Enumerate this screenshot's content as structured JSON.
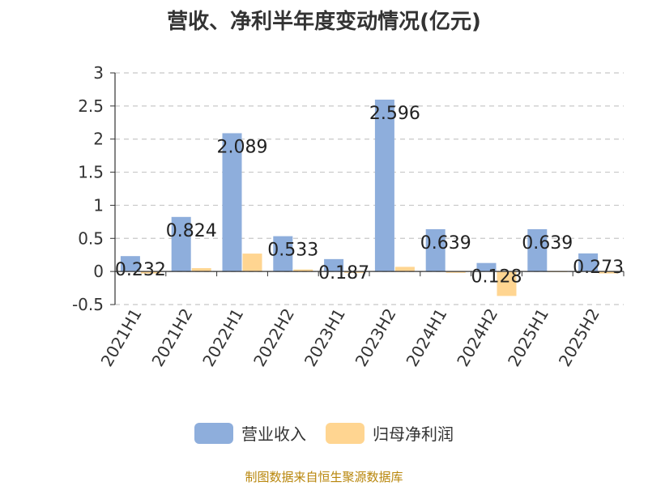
{
  "chart_data": {
    "type": "bar",
    "title": "营收、净利半年度变动情况(亿元)",
    "categories": [
      "2021H1",
      "2021H2",
      "2022H1",
      "2022H2",
      "2023H1",
      "2023H2",
      "2024H1",
      "2024H2",
      "2025H1",
      "2025H2"
    ],
    "series": [
      {
        "name": "营业收入",
        "color": "#8eaedc",
        "values": [
          0.232,
          0.824,
          2.089,
          0.533,
          0.187,
          2.596,
          0.639,
          0.128,
          0.639,
          0.273
        ]
      },
      {
        "name": "归母净利润",
        "color": "#ffd591",
        "values": [
          -0.03,
          0.05,
          0.27,
          0.03,
          -0.02,
          0.07,
          -0.02,
          -0.37,
          -0.01,
          -0.03
        ]
      }
    ],
    "data_labels": [
      "0.232",
      "0.824",
      "2.089",
      "0.533",
      "0.187",
      "2.596",
      "0.639",
      "0.128",
      "0.639",
      "0.273"
    ],
    "yticks": [
      "-0.5",
      "0",
      "0.5",
      "1",
      "1.5",
      "2",
      "2.5",
      "3"
    ],
    "ylim": [
      -0.5,
      3
    ],
    "grid": true,
    "legend_position": "bottom"
  },
  "footer": {
    "source": "制图数据来自恒生聚源数据库"
  }
}
